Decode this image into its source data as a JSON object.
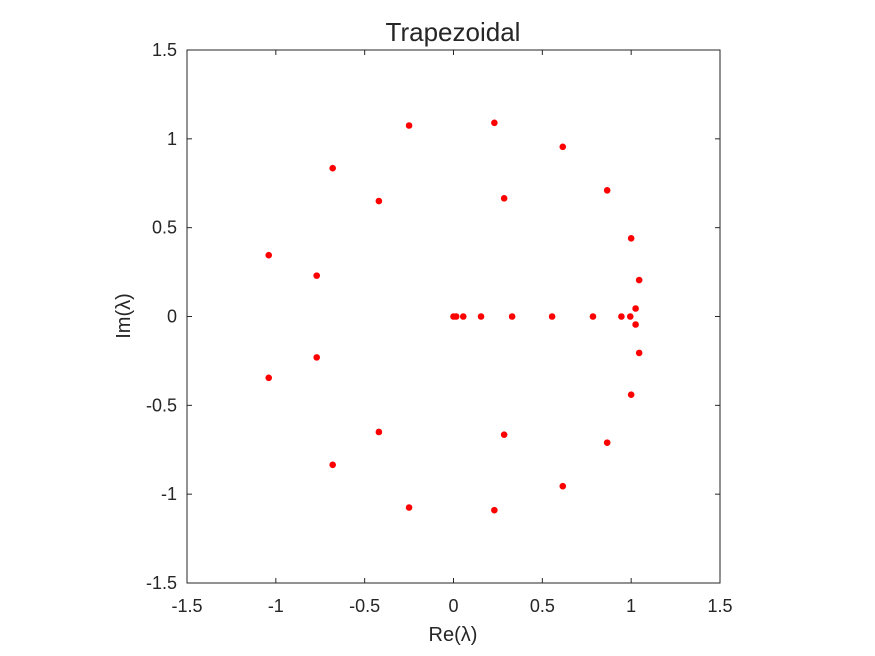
{
  "chart_data": {
    "type": "scatter",
    "title": "Trapezoidal",
    "xlabel": "Re(λ)",
    "ylabel": "Im(λ)",
    "xlim": [
      -1.5,
      1.5
    ],
    "ylim": [
      -1.5,
      1.5
    ],
    "xticks": [
      -1.5,
      -1,
      -0.5,
      0,
      0.5,
      1,
      1.5
    ],
    "yticks": [
      -1.5,
      -1,
      -0.5,
      0,
      0.5,
      1,
      1.5
    ],
    "xtick_labels": [
      "-1.5",
      "-1",
      "-0.5",
      "0",
      "0.5",
      "1",
      "1.5"
    ],
    "ytick_labels": [
      "-1.5",
      "-1",
      "-0.5",
      "0",
      "0.5",
      "1",
      "1.5"
    ],
    "grid": false,
    "marker_color": "#ff0000",
    "series": [
      {
        "points": [
          [
            0.23,
            1.09
          ],
          [
            -0.25,
            1.075
          ],
          [
            0.615,
            0.955
          ],
          [
            -0.68,
            0.835
          ],
          [
            0.865,
            0.71
          ],
          [
            0.285,
            0.665
          ],
          [
            -0.42,
            0.65
          ],
          [
            1.0,
            0.44
          ],
          [
            -1.04,
            0.345
          ],
          [
            -0.77,
            0.23
          ],
          [
            1.045,
            0.205
          ],
          [
            1.025,
            0.045
          ],
          [
            0.0,
            0.0
          ],
          [
            0.015,
            0.0
          ],
          [
            0.055,
            0.0
          ],
          [
            0.155,
            0.0
          ],
          [
            0.33,
            0.0
          ],
          [
            0.555,
            0.0
          ],
          [
            0.785,
            0.0
          ],
          [
            0.945,
            0.0
          ],
          [
            0.995,
            0.0
          ],
          [
            1.025,
            -0.045
          ],
          [
            1.045,
            -0.205
          ],
          [
            -0.77,
            -0.23
          ],
          [
            -1.04,
            -0.345
          ],
          [
            1.0,
            -0.44
          ],
          [
            -0.42,
            -0.65
          ],
          [
            0.285,
            -0.665
          ],
          [
            0.865,
            -0.71
          ],
          [
            -0.68,
            -0.835
          ],
          [
            0.615,
            -0.955
          ],
          [
            -0.25,
            -1.075
          ],
          [
            0.23,
            -1.09
          ]
        ]
      }
    ]
  }
}
